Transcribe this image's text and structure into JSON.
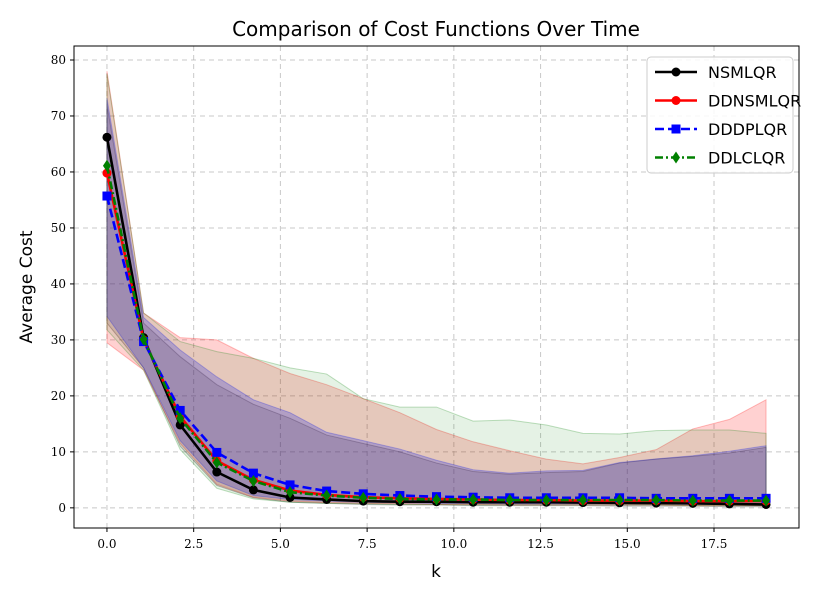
{
  "chart_data": {
    "type": "line",
    "title": "Comparison of Cost Functions Over Time",
    "xlabel": "k",
    "ylabel": "Average Cost",
    "xlim": [
      -0.95,
      19.95
    ],
    "ylim": [
      -3.6,
      82.5
    ],
    "xticks": [
      "0.0",
      "2.5",
      "5.0",
      "7.5",
      "10.0",
      "12.5",
      "15.0",
      "17.5"
    ],
    "xtick_values": [
      0,
      2.5,
      5,
      7.5,
      10,
      12.5,
      15,
      17.5
    ],
    "yticks": [
      "0",
      "10",
      "20",
      "30",
      "40",
      "50",
      "60",
      "70",
      "80"
    ],
    "ytick_values": [
      0,
      10,
      20,
      30,
      40,
      50,
      60,
      70,
      80
    ],
    "grid": true,
    "legend_position": "top-right",
    "x": [
      0,
      1.056,
      2.111,
      3.167,
      4.222,
      5.278,
      6.333,
      7.389,
      8.444,
      9.5,
      10.556,
      11.611,
      12.667,
      13.722,
      14.778,
      15.833,
      16.889,
      17.944,
      19
    ],
    "series": [
      {
        "name": "NSMLQR",
        "color": "#000000",
        "marker": "circle",
        "linestyle": "solid",
        "values": [
          66.2,
          30.4,
          14.8,
          6.4,
          3.2,
          1.85,
          1.5,
          1.2,
          1.1,
          1.1,
          1.0,
          1.0,
          1.0,
          0.95,
          0.9,
          0.85,
          0.8,
          0.7,
          0.6
        ],
        "band_lower": [
          33,
          25,
          11,
          4,
          1.8,
          1.0,
          0.8,
          0.6,
          0.5,
          0.5,
          0.4,
          0.4,
          0.4,
          0.4,
          0.3,
          0.3,
          0.3,
          0.2,
          0.2
        ],
        "band_upper": [
          72,
          33,
          27,
          22,
          18.5,
          16,
          13,
          11.5,
          10,
          8,
          6.5,
          6,
          6.3,
          6.5,
          8,
          8.7,
          9.2,
          9.8,
          10.8
        ]
      },
      {
        "name": "DDNSMLQR",
        "color": "#ff0000",
        "marker": "circle",
        "linestyle": "solid",
        "values": [
          59.8,
          30.0,
          16.3,
          8.4,
          5.0,
          3.1,
          2.3,
          1.9,
          1.7,
          1.6,
          1.5,
          1.4,
          1.4,
          1.3,
          1.3,
          1.3,
          1.2,
          1.2,
          1.2
        ],
        "band_lower": [
          29.5,
          24.6,
          11.5,
          4.2,
          1.9,
          1.2,
          0.9,
          0.8,
          0.7,
          0.6,
          0.6,
          0.5,
          0.5,
          0.5,
          0.5,
          0.5,
          0.4,
          0.4,
          0.4
        ],
        "band_upper": [
          78.0,
          34.8,
          30.4,
          30.0,
          26.7,
          24.0,
          22.0,
          19.5,
          17.0,
          14.0,
          11.8,
          10.2,
          8.7,
          7.85,
          9.0,
          10.4,
          14.1,
          15.8,
          19.3
        ]
      },
      {
        "name": "DDDPLQR",
        "color": "#0000ff",
        "marker": "square",
        "linestyle": "dashed",
        "values": [
          55.7,
          29.7,
          17.4,
          9.9,
          6.2,
          4.1,
          3.0,
          2.5,
          2.2,
          2.0,
          1.9,
          1.8,
          1.8,
          1.8,
          1.8,
          1.7,
          1.7,
          1.7,
          1.7
        ],
        "band_lower": [
          34.2,
          25,
          12,
          4.8,
          2.2,
          1.5,
          1.2,
          1.0,
          0.9,
          0.8,
          0.8,
          0.7,
          0.7,
          0.7,
          0.7,
          0.7,
          0.6,
          0.6,
          0.6
        ],
        "band_upper": [
          73.2,
          34.0,
          28.2,
          23.4,
          19.3,
          17.0,
          13.5,
          12.0,
          10.5,
          8.5,
          6.8,
          6.2,
          6.6,
          6.7,
          8.1,
          8.75,
          9.3,
          10.1,
          11.1
        ]
      },
      {
        "name": "DDLCLQR",
        "color": "#008000",
        "marker": "diamond",
        "linestyle": "dashdot",
        "values": [
          61.1,
          30.1,
          16.0,
          8.1,
          4.8,
          2.8,
          2.2,
          1.8,
          1.6,
          1.5,
          1.5,
          1.4,
          1.4,
          1.4,
          1.4,
          1.4,
          1.3,
          1.3,
          1.3
        ],
        "band_lower": [
          31.8,
          24.6,
          10.4,
          3.5,
          1.6,
          1.0,
          0.8,
          0.7,
          0.6,
          0.6,
          0.5,
          0.5,
          0.5,
          0.5,
          0.5,
          0.5,
          0.4,
          0.4,
          0.4
        ],
        "band_upper": [
          77.5,
          34.8,
          29.7,
          27.9,
          26.7,
          25.0,
          23.9,
          19.5,
          18.0,
          18.0,
          15.5,
          15.7,
          14.8,
          13.3,
          13.2,
          13.8,
          13.9,
          13.9,
          13.3
        ]
      }
    ]
  }
}
